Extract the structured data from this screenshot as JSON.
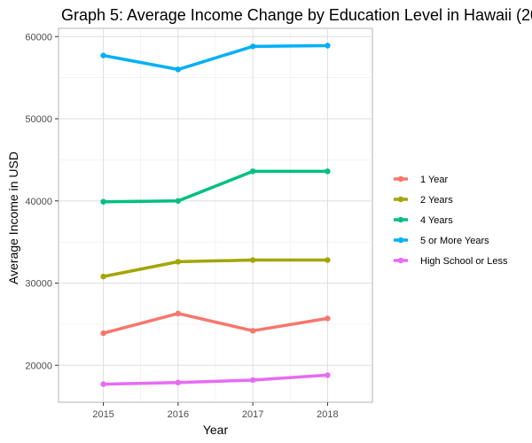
{
  "chart_data": {
    "type": "line",
    "title": "Graph 5: Average Income Change by Education Level in Hawaii (20",
    "xlabel": "Year",
    "ylabel": "Average Income in USD",
    "x": [
      2015,
      2016,
      2017,
      2018
    ],
    "x_tick_labels": [
      "2015",
      "2016",
      "2017",
      "2018"
    ],
    "ylim": [
      15500,
      61000
    ],
    "y_ticks": [
      20000,
      30000,
      40000,
      50000,
      60000
    ],
    "y_tick_labels": [
      "20000",
      "30000",
      "40000",
      "50000",
      "60000"
    ],
    "grid": true,
    "legend_position": "right",
    "series": [
      {
        "name": "1 Year",
        "color": "#F8766D",
        "values": [
          23900,
          26300,
          24200,
          25700
        ]
      },
      {
        "name": "2 Years",
        "color": "#A3A500",
        "values": [
          30800,
          32600,
          32800,
          32800
        ]
      },
      {
        "name": "4 Years",
        "color": "#00BF7D",
        "values": [
          39900,
          40000,
          43600,
          43600
        ]
      },
      {
        "name": "5 or More Years",
        "color": "#00B0F6",
        "values": [
          57700,
          56000,
          58800,
          58900
        ]
      },
      {
        "name": "High School or Less",
        "color": "#E76BF3",
        "values": [
          17700,
          17900,
          18200,
          18800
        ]
      }
    ]
  }
}
